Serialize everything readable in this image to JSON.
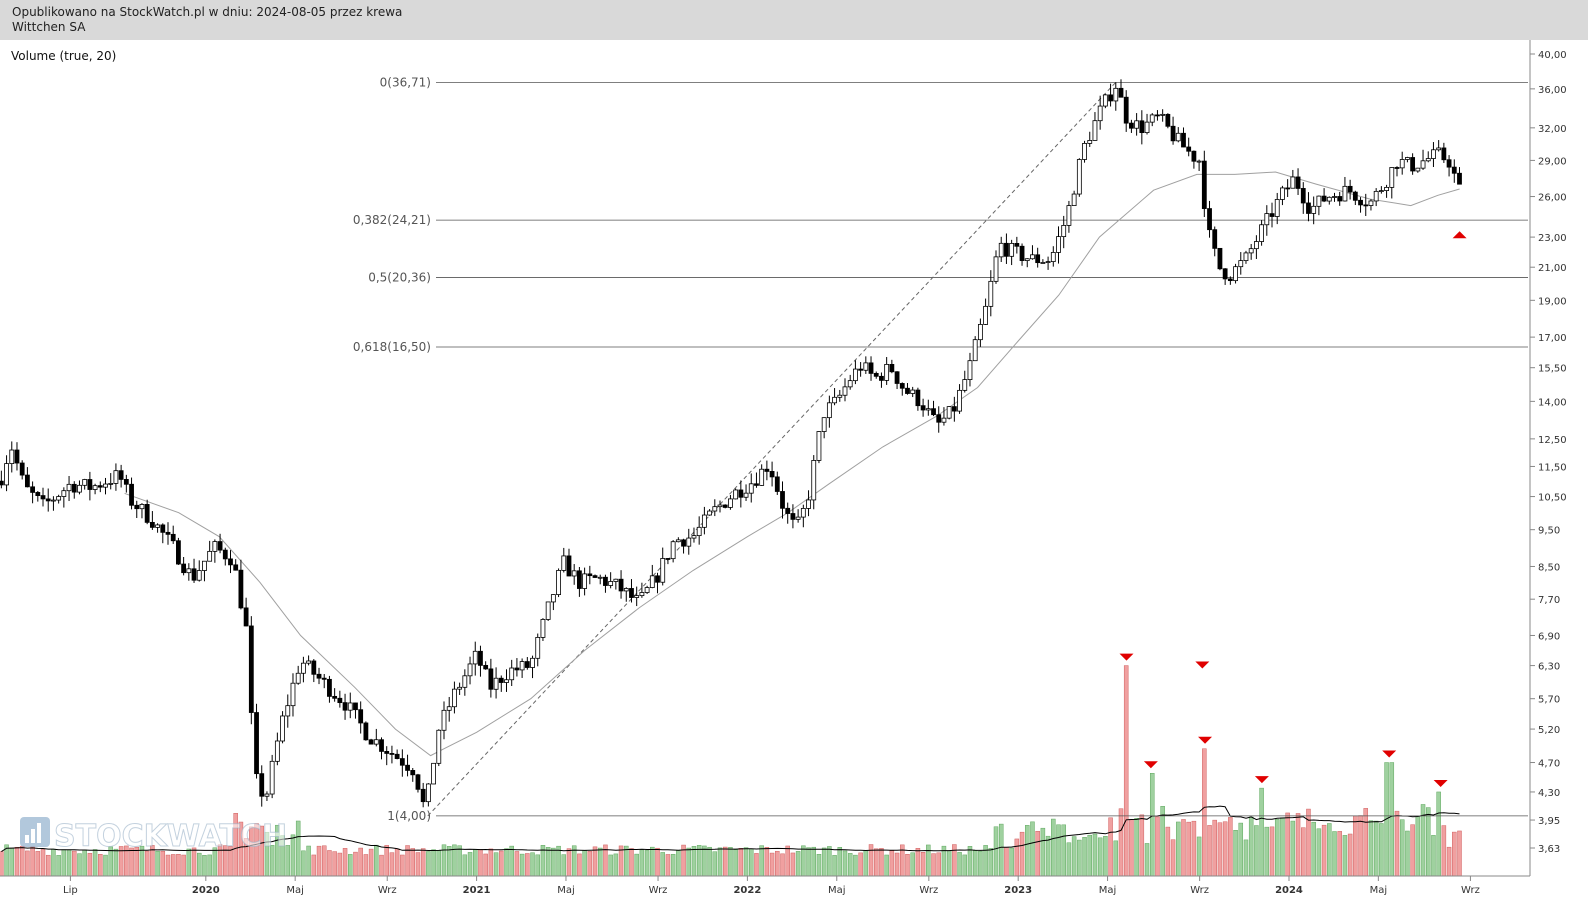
{
  "header": {
    "line1": "Opublikowano na StockWatch.pl w dniu: 2024-08-05 przez krewa",
    "line2": "Wittchen SA"
  },
  "indicator_label": "Volume (true, 20)",
  "logo": {
    "text": "STOCKWATCH",
    "icon": "bar-chart-icon"
  },
  "colors": {
    "up_volume": "#9fd19f",
    "down_volume": "#f0a0a0",
    "marker": "#e00000",
    "ma_line": "#a0a0a0"
  },
  "chart_data": {
    "type": "candlestick",
    "y_scale": "log",
    "ylim": [
      3.5,
      41.5
    ],
    "y_ticks": [
      "40,00",
      "36,00",
      "32,00",
      "29,00",
      "26,00",
      "23,00",
      "21,00",
      "19,00",
      "17,00",
      "15,50",
      "14,00",
      "12,50",
      "11,50",
      "10,50",
      "9,50",
      "8,50",
      "7,70",
      "6,90",
      "6,30",
      "5,70",
      "5,20",
      "4,70",
      "4,30",
      "3,95",
      "3,63"
    ],
    "x_ticks": [
      "Lip",
      "2020",
      "Maj",
      "Wrz",
      "2021",
      "Maj",
      "Wrz",
      "2022",
      "Maj",
      "Wrz",
      "2023",
      "Maj",
      "Wrz",
      "2024",
      "Maj",
      "Wrz"
    ],
    "x_tick_times": [
      2019.5,
      2020.0,
      2020.33,
      2020.67,
      2021.0,
      2021.33,
      2021.67,
      2022.0,
      2022.33,
      2022.67,
      2023.0,
      2023.33,
      2023.67,
      2024.0,
      2024.33,
      2024.67
    ],
    "fib_levels": [
      {
        "label": "0(36,71)",
        "value": 36.71
      },
      {
        "label": "0,382(24,21)",
        "value": 24.21
      },
      {
        "label": "0,5(20,36)",
        "value": 20.36
      },
      {
        "label": "0,618(16,50)",
        "value": 16.5
      },
      {
        "label": "1(4,00)",
        "value": 4.0
      }
    ],
    "trendline": {
      "from": {
        "t": 2020.82,
        "v": 4.0
      },
      "to": {
        "t": 2023.36,
        "v": 36.71
      }
    },
    "price_path": [
      [
        2019.24,
        11.0
      ],
      [
        2019.28,
        12.3
      ],
      [
        2019.33,
        10.8
      ],
      [
        2019.4,
        10.2
      ],
      [
        2019.5,
        10.9
      ],
      [
        2019.58,
        10.8
      ],
      [
        2019.68,
        11.2
      ],
      [
        2019.72,
        10.4
      ],
      [
        2019.8,
        9.8
      ],
      [
        2019.88,
        9.0
      ],
      [
        2019.95,
        8.2
      ],
      [
        2020.03,
        9.0
      ],
      [
        2020.1,
        8.7
      ],
      [
        2020.15,
        7.0
      ],
      [
        2020.18,
        4.5
      ],
      [
        2020.22,
        4.2
      ],
      [
        2020.28,
        5.3
      ],
      [
        2020.35,
        6.4
      ],
      [
        2020.43,
        6.0
      ],
      [
        2020.52,
        5.6
      ],
      [
        2020.6,
        5.1
      ],
      [
        2020.7,
        4.8
      ],
      [
        2020.77,
        4.6
      ],
      [
        2020.81,
        4.05
      ],
      [
        2020.86,
        5.2
      ],
      [
        2020.92,
        5.8
      ],
      [
        2021.0,
        6.5
      ],
      [
        2021.05,
        5.9
      ],
      [
        2021.12,
        6.2
      ],
      [
        2021.2,
        6.3
      ],
      [
        2021.26,
        7.4
      ],
      [
        2021.32,
        8.6
      ],
      [
        2021.38,
        8.1
      ],
      [
        2021.45,
        8.2
      ],
      [
        2021.52,
        8.0
      ],
      [
        2021.6,
        7.6
      ],
      [
        2021.67,
        8.3
      ],
      [
        2021.73,
        9.2
      ],
      [
        2021.8,
        9.3
      ],
      [
        2021.87,
        10.0
      ],
      [
        2021.95,
        10.6
      ],
      [
        2022.02,
        11.0
      ],
      [
        2022.08,
        11.6
      ],
      [
        2022.14,
        10.0
      ],
      [
        2022.18,
        9.5
      ],
      [
        2022.22,
        10.3
      ],
      [
        2022.28,
        13.5
      ],
      [
        2022.33,
        14.0
      ],
      [
        2022.38,
        15.0
      ],
      [
        2022.42,
        15.6
      ],
      [
        2022.47,
        15.0
      ],
      [
        2022.53,
        15.5
      ],
      [
        2022.58,
        14.5
      ],
      [
        2022.64,
        14.0
      ],
      [
        2022.7,
        13.0
      ],
      [
        2022.76,
        13.6
      ],
      [
        2022.82,
        15.5
      ],
      [
        2022.88,
        18.5
      ],
      [
        2022.93,
        22.5
      ],
      [
        2022.98,
        22.0
      ],
      [
        2023.05,
        21.5
      ],
      [
        2023.12,
        21.5
      ],
      [
        2023.18,
        24.5
      ],
      [
        2023.24,
        30.0
      ],
      [
        2023.3,
        33.5
      ],
      [
        2023.36,
        36.5
      ],
      [
        2023.4,
        33.0
      ],
      [
        2023.45,
        32.0
      ],
      [
        2023.52,
        33.0
      ],
      [
        2023.58,
        31.0
      ],
      [
        2023.64,
        29.5
      ],
      [
        2023.67,
        29.0
      ],
      [
        2023.7,
        23.5
      ],
      [
        2023.74,
        21.0
      ],
      [
        2023.78,
        20.5
      ],
      [
        2023.84,
        21.5
      ],
      [
        2023.9,
        23.5
      ],
      [
        2023.97,
        26.0
      ],
      [
        2024.02,
        27.5
      ],
      [
        2024.08,
        25.0
      ],
      [
        2024.14,
        26.0
      ],
      [
        2024.22,
        26.5
      ],
      [
        2024.3,
        25.5
      ],
      [
        2024.35,
        27.0
      ],
      [
        2024.4,
        29.0
      ],
      [
        2024.45,
        28.5
      ],
      [
        2024.5,
        29.0
      ],
      [
        2024.55,
        29.5
      ],
      [
        2024.59,
        29.0
      ],
      [
        2024.63,
        26.5
      ]
    ],
    "moving_average": [
      [
        2019.7,
        10.6
      ],
      [
        2019.9,
        10.0
      ],
      [
        2020.05,
        9.3
      ],
      [
        2020.2,
        8.1
      ],
      [
        2020.35,
        6.9
      ],
      [
        2020.55,
        5.9
      ],
      [
        2020.7,
        5.2
      ],
      [
        2020.83,
        4.8
      ],
      [
        2020.88,
        4.9
      ],
      [
        2021.0,
        5.15
      ],
      [
        2021.2,
        5.7
      ],
      [
        2021.4,
        6.6
      ],
      [
        2021.6,
        7.5
      ],
      [
        2021.8,
        8.4
      ],
      [
        2022.0,
        9.3
      ],
      [
        2022.15,
        10.0
      ],
      [
        2022.3,
        10.9
      ],
      [
        2022.5,
        12.2
      ],
      [
        2022.7,
        13.4
      ],
      [
        2022.85,
        14.6
      ],
      [
        2023.0,
        16.8
      ],
      [
        2023.15,
        19.3
      ],
      [
        2023.3,
        23.0
      ],
      [
        2023.5,
        26.5
      ],
      [
        2023.66,
        27.8
      ],
      [
        2023.8,
        27.8
      ],
      [
        2023.95,
        28.0
      ],
      [
        2024.1,
        27.0
      ],
      [
        2024.3,
        25.8
      ],
      [
        2024.45,
        25.3
      ],
      [
        2024.55,
        26.1
      ],
      [
        2024.63,
        26.6
      ]
    ],
    "volume_spikes": [
      {
        "t": 2023.4,
        "v": 6.3
      },
      {
        "t": 2023.49,
        "v": 4.55
      },
      {
        "t": 2023.68,
        "v": 6.15
      },
      {
        "t": 2023.69,
        "v": 4.9
      },
      {
        "t": 2023.9,
        "v": 4.35
      },
      {
        "t": 2024.37,
        "v": 4.7
      },
      {
        "t": 2024.56,
        "v": 4.3
      }
    ],
    "signal_up": {
      "t": 2024.63,
      "v": 23.2
    }
  }
}
